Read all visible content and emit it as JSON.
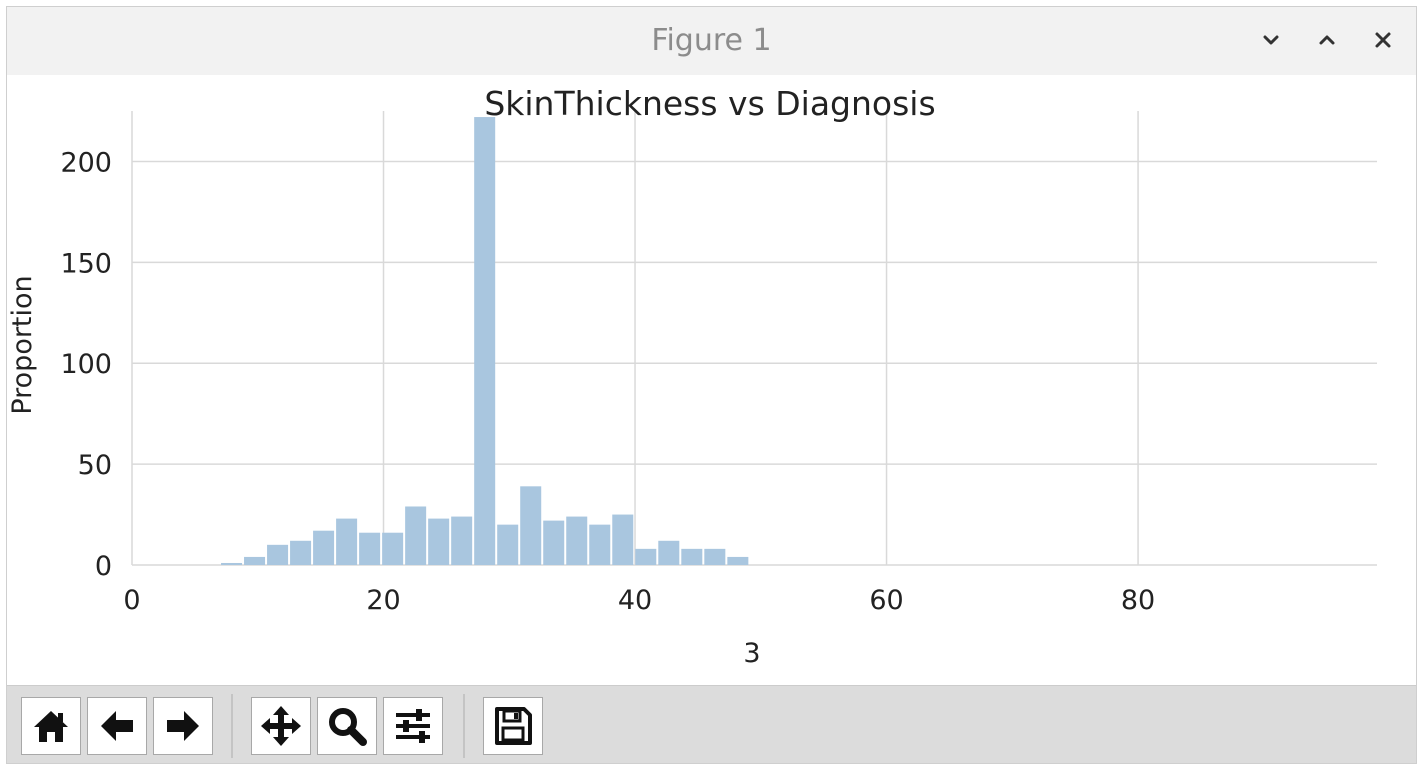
{
  "window": {
    "title": "Figure 1",
    "icons": [
      "chevron-down-icon",
      "chevron-up-icon",
      "close-icon"
    ]
  },
  "toolbar": {
    "buttons": [
      {
        "name": "home-icon"
      },
      {
        "name": "back-arrow-icon"
      },
      {
        "name": "forward-arrow-icon"
      },
      {
        "name": "pan-icon"
      },
      {
        "name": "zoom-icon"
      },
      {
        "name": "configure-subplots-icon"
      },
      {
        "name": "save-icon"
      }
    ]
  },
  "colors": {
    "bar_fill": "#a9c6df",
    "grid": "#d9d9d9",
    "text": "#222222"
  },
  "chart_data": {
    "type": "bar",
    "title": "SkinThickness vs Diagnosis",
    "xlabel": "3",
    "ylabel": "Proportion",
    "xlim": [
      0,
      99
    ],
    "ylim": [
      0,
      225
    ],
    "grid": true,
    "x_ticks": [
      0,
      20,
      40,
      60,
      80
    ],
    "y_ticks": [
      0,
      50,
      100,
      150,
      200
    ],
    "bin_width": 1.83,
    "series": [
      {
        "bin_starts": [
          7,
          8.83,
          10.66,
          12.49,
          14.32,
          16.15,
          17.98,
          19.81,
          21.64,
          23.47,
          25.3,
          27.13,
          28.96,
          30.79,
          32.62,
          34.45,
          36.28,
          38.11,
          39.94,
          41.77,
          43.6,
          45.43,
          47.26,
          49.09
        ],
        "values": [
          1,
          4,
          10,
          12,
          17,
          23,
          16,
          16,
          29,
          23,
          24,
          222,
          20,
          39,
          22,
          24,
          20,
          25,
          8,
          12,
          8,
          8,
          4,
          0
        ]
      }
    ]
  }
}
